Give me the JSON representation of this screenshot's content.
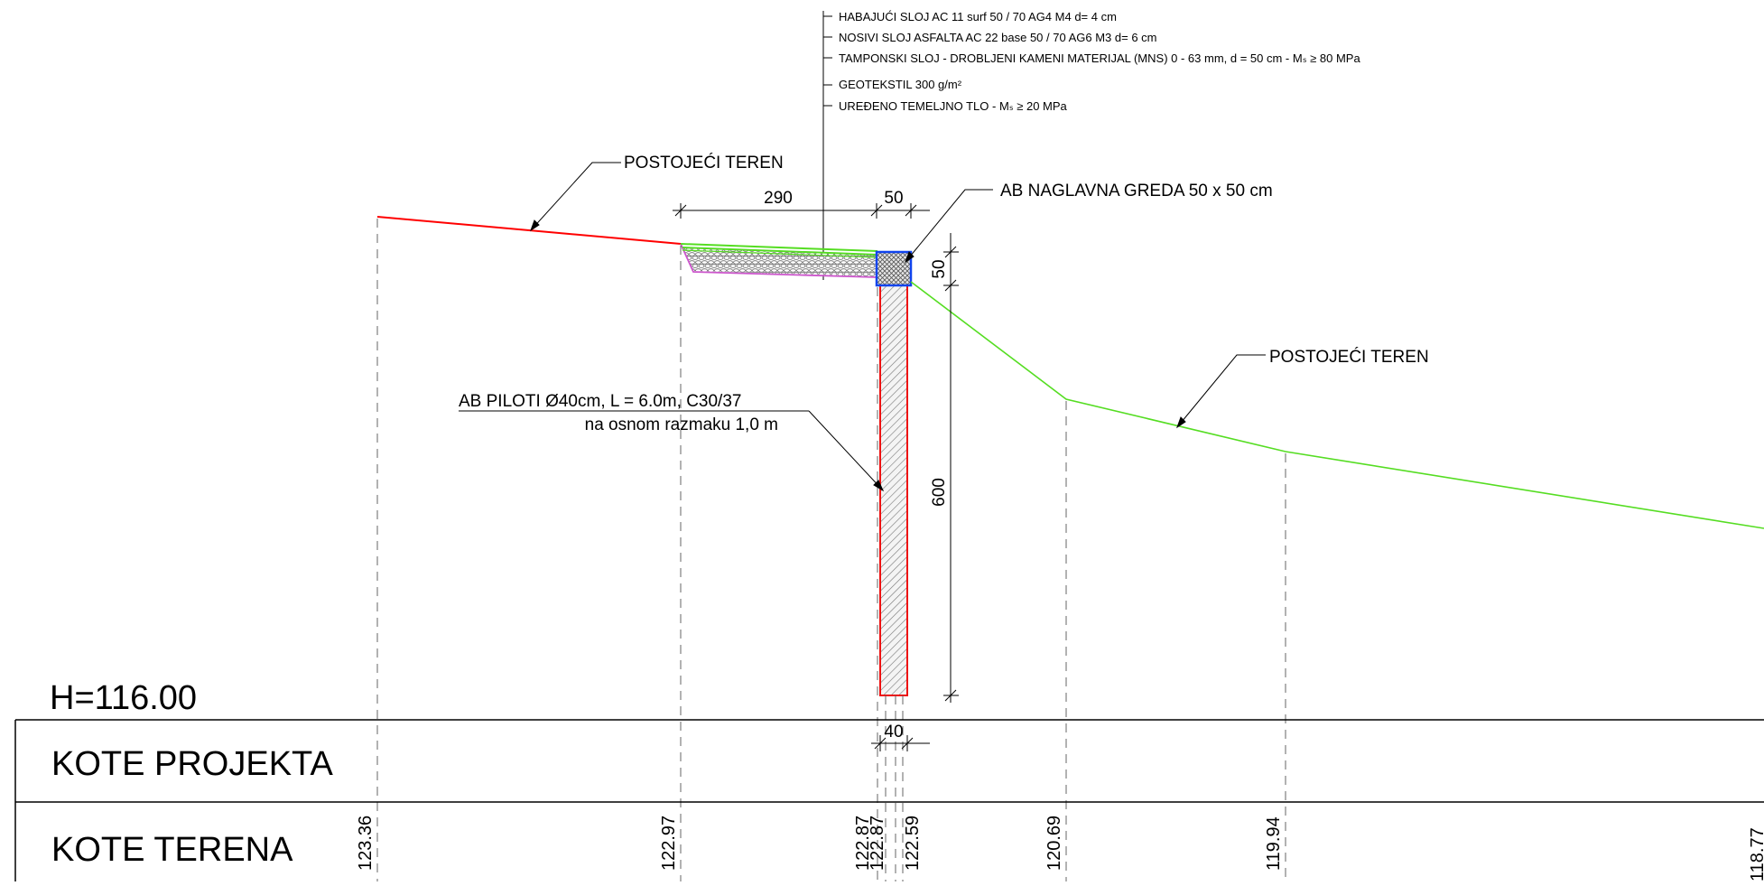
{
  "layers": [
    "HABAJUĆI SLOJ AC 11 surf  50 / 70 AG4 M4 d= 4 cm",
    "NOSIVI SLOJ ASFALTA  AC 22 base 50 / 70 AG6 M3 d= 6 cm",
    "TAMPONSKI SLOJ - DROBLJENI KAMENI MATERIJAL (MNS) 0 - 63 mm, d = 50 cm - Mₛ ≥ 80 MPa",
    "GEOTEKSTIL 300 g/m²",
    "UREĐENO TEMELJNO TLO - Mₛ ≥ 20 MPa"
  ],
  "labels": {
    "terrain_left": "POSTOJEĆI TEREN",
    "terrain_right": "POSTOJEĆI TEREN",
    "beam": "AB NAGLAVNA GREDA 50 x 50 cm",
    "piles_line1": "AB  PILOTI Ø40cm, L = 6.0m, C30/37",
    "piles_line2": "na osnom razmaku 1,0 m"
  },
  "dimensions": {
    "width_road": "290",
    "width_beam": "50",
    "height_beam": "50",
    "height_pile": "600",
    "diameter_pile": "40"
  },
  "table": {
    "datum": "H=116.00",
    "row_project": "KOTE PROJEKTA",
    "row_terrain": "KOTE TERENA"
  },
  "terrain_elevations": [
    "123.36",
    "122.97",
    "122.87",
    "122.87",
    "122.59",
    "120.69",
    "119.94",
    "118.77"
  ],
  "colors": {
    "terrain_existing": "#ff0000",
    "terrain_green": "#55dd22",
    "beam_outline": "#1144ee",
    "pile_outline": "#ee1111",
    "geotextile": "#cc55cc"
  }
}
